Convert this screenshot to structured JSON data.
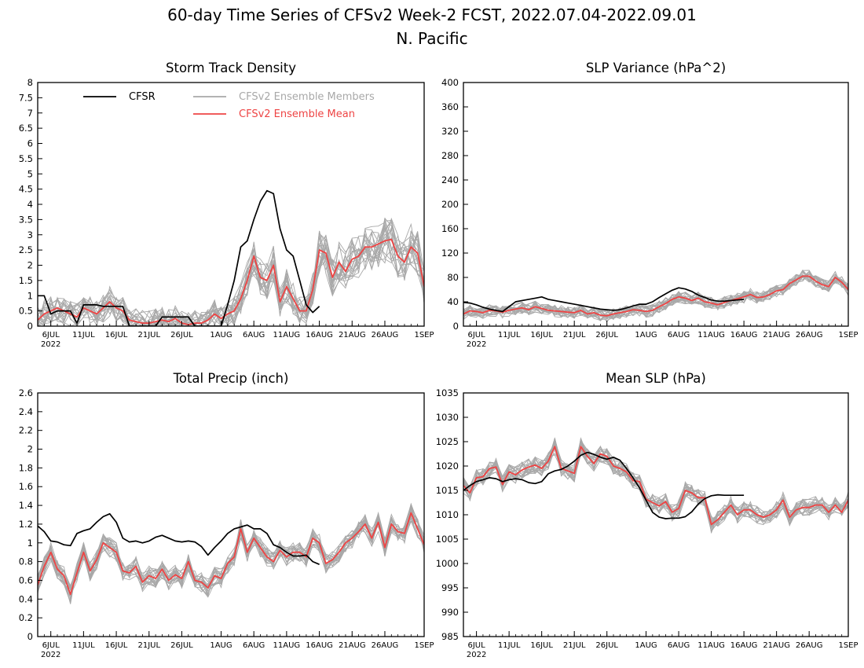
{
  "figure": {
    "title_line1": "60-day Time Series of CFSv2 Week-2 FCST, 2022.07.04-2022.09.01",
    "title_line2": "N. Pacific"
  },
  "legend": {
    "cfsr": "CFSR",
    "members": "CFSv2 Ensemble Members",
    "mean": "CFSv2 Ensemble Mean"
  },
  "colors": {
    "cfsr": "#000000",
    "members": "#a8a8a8",
    "mean": "#ee4444"
  },
  "x_axis": {
    "ticks": [
      {
        "day": 2,
        "label": "6JUL"
      },
      {
        "day": 7,
        "label": "11JUL"
      },
      {
        "day": 12,
        "label": "16JUL"
      },
      {
        "day": 17,
        "label": "21JUL"
      },
      {
        "day": 22,
        "label": "26JUL"
      },
      {
        "day": 28,
        "label": "1AUG"
      },
      {
        "day": 33,
        "label": "6AUG"
      },
      {
        "day": 38,
        "label": "11AUG"
      },
      {
        "day": 43,
        "label": "16AUG"
      },
      {
        "day": 48,
        "label": "21AUG"
      },
      {
        "day": 53,
        "label": "26AUG"
      },
      {
        "day": 59,
        "label": "1SEP"
      }
    ],
    "year_label": "2022"
  },
  "chart_data": [
    {
      "type": "line",
      "title": "Storm Track Density",
      "ylim": [
        0,
        8
      ],
      "yticks": [
        "0",
        "0.5",
        "1",
        "1.5",
        "2",
        "2.5",
        "3",
        "3.5",
        "4",
        "4.5",
        "5",
        "5.5",
        "6",
        "6.5",
        "7",
        "7.5",
        "8"
      ],
      "ystep": 0.5,
      "x_start": "2022-07-04",
      "x_end": "2022-09-01",
      "grid": false,
      "legend_position": "top-left",
      "series": [
        {
          "name": "CFSR",
          "x": [
            0,
            1,
            2,
            3,
            4,
            5,
            6,
            7,
            8,
            9,
            10,
            11,
            12,
            13,
            14,
            15,
            16,
            17,
            18,
            19,
            20,
            21,
            22,
            23,
            24,
            25,
            26,
            27,
            28,
            29,
            30,
            31,
            32,
            33,
            34,
            35,
            36,
            37,
            38,
            39,
            40,
            41,
            42,
            43
          ],
          "values": [
            1.0,
            1.0,
            0.4,
            0.5,
            0.5,
            0.5,
            0.1,
            0.7,
            0.7,
            0.7,
            0.65,
            0.65,
            0.65,
            0.65,
            0.0,
            0.0,
            0.0,
            0.0,
            0.0,
            0.3,
            0.3,
            0.3,
            0.3,
            0.3,
            0.0,
            0.0,
            0.0,
            0.0,
            0.0,
            0.7,
            1.5,
            2.6,
            2.8,
            3.5,
            4.1,
            4.45,
            4.35,
            3.2,
            2.5,
            2.3,
            1.5,
            0.7,
            0.45,
            0.65
          ]
        },
        {
          "name": "CFSv2 Ensemble Mean",
          "x": [
            0,
            1,
            2,
            3,
            4,
            5,
            6,
            7,
            8,
            9,
            10,
            11,
            12,
            13,
            14,
            15,
            16,
            17,
            18,
            19,
            20,
            21,
            22,
            23,
            24,
            25,
            26,
            27,
            28,
            29,
            30,
            31,
            32,
            33,
            34,
            35,
            36,
            37,
            38,
            39,
            40,
            41,
            42,
            43,
            44,
            45,
            46,
            47,
            48,
            49,
            50,
            51,
            52,
            53,
            54,
            55,
            56,
            57,
            58,
            59
          ],
          "values": [
            0.2,
            0.4,
            0.5,
            0.6,
            0.5,
            0.4,
            0.3,
            0.6,
            0.5,
            0.4,
            0.6,
            0.8,
            0.6,
            0.5,
            0.2,
            0.15,
            0.1,
            0.1,
            0.15,
            0.2,
            0.15,
            0.25,
            0.1,
            0.05,
            0.1,
            0.1,
            0.2,
            0.4,
            0.25,
            0.4,
            0.5,
            0.9,
            1.5,
            2.3,
            1.6,
            1.5,
            2.0,
            0.8,
            1.3,
            0.9,
            0.5,
            0.5,
            1.2,
            2.5,
            2.4,
            1.6,
            2.1,
            1.8,
            2.2,
            2.3,
            2.6,
            2.6,
            2.7,
            2.8,
            2.85,
            2.3,
            2.1,
            2.6,
            2.4,
            1.3
          ]
        }
      ]
    },
    {
      "type": "line",
      "title": "SLP Variance (hPa^2)",
      "ylim": [
        0,
        400
      ],
      "yticks": [
        "0",
        "40",
        "80",
        "120",
        "160",
        "200",
        "240",
        "280",
        "320",
        "360",
        "400"
      ],
      "ystep": 40,
      "x_start": "2022-07-04",
      "x_end": "2022-09-01",
      "grid": false,
      "series": [
        {
          "name": "CFSR",
          "x": [
            0,
            1,
            2,
            3,
            4,
            5,
            6,
            7,
            8,
            9,
            10,
            11,
            12,
            13,
            14,
            15,
            16,
            17,
            18,
            19,
            20,
            21,
            22,
            23,
            24,
            25,
            26,
            27,
            28,
            29,
            30,
            31,
            32,
            33,
            34,
            35,
            36,
            37,
            38,
            39,
            40,
            41,
            42,
            43
          ],
          "values": [
            39,
            38,
            35,
            31,
            28,
            26,
            24,
            32,
            40,
            42,
            44,
            46,
            48,
            44,
            42,
            40,
            38,
            36,
            34,
            32,
            30,
            28,
            27,
            26,
            27,
            30,
            33,
            36,
            36,
            40,
            47,
            53,
            59,
            63,
            61,
            57,
            51,
            47,
            43,
            41,
            41,
            42,
            43,
            44
          ]
        },
        {
          "name": "CFSv2 Ensemble Mean",
          "x": [
            0,
            1,
            2,
            3,
            4,
            5,
            6,
            7,
            8,
            9,
            10,
            11,
            12,
            13,
            14,
            15,
            16,
            17,
            18,
            19,
            20,
            21,
            22,
            23,
            24,
            25,
            26,
            27,
            28,
            29,
            30,
            31,
            32,
            33,
            34,
            35,
            36,
            37,
            38,
            39,
            40,
            41,
            42,
            43,
            44,
            45,
            46,
            47,
            48,
            49,
            50,
            51,
            52,
            53,
            54,
            55,
            56,
            57,
            58,
            59
          ],
          "values": [
            20,
            25,
            24,
            22,
            26,
            25,
            23,
            26,
            28,
            30,
            27,
            32,
            29,
            26,
            25,
            24,
            23,
            22,
            26,
            20,
            22,
            18,
            17,
            20,
            22,
            24,
            27,
            26,
            24,
            26,
            32,
            37,
            44,
            48,
            46,
            42,
            46,
            40,
            38,
            35,
            39,
            42,
            45,
            48,
            52,
            47,
            48,
            52,
            58,
            60,
            70,
            76,
            82,
            82,
            74,
            68,
            65,
            80,
            72,
            60
          ]
        }
      ]
    },
    {
      "type": "line",
      "title": "Total Precip (inch)",
      "ylim": [
        0,
        2.6
      ],
      "yticks": [
        "0",
        "0.2",
        "0.4",
        "0.6",
        "0.8",
        "1",
        "1.2",
        "1.4",
        "1.6",
        "1.8",
        "2",
        "2.2",
        "2.4",
        "2.6"
      ],
      "ystep": 0.2,
      "x_start": "2022-07-04",
      "x_end": "2022-09-01",
      "grid": false,
      "series": [
        {
          "name": "CFSR",
          "x": [
            0,
            1,
            2,
            3,
            4,
            5,
            6,
            7,
            8,
            9,
            10,
            11,
            12,
            13,
            14,
            15,
            16,
            17,
            18,
            19,
            20,
            21,
            22,
            23,
            24,
            25,
            26,
            27,
            28,
            29,
            30,
            31,
            32,
            33,
            34,
            35,
            36,
            37,
            38,
            39,
            40,
            41,
            42,
            43
          ],
          "values": [
            1.18,
            1.12,
            1.02,
            1.01,
            0.98,
            0.97,
            1.1,
            1.13,
            1.15,
            1.22,
            1.28,
            1.31,
            1.22,
            1.05,
            1.01,
            1.02,
            1.0,
            1.02,
            1.06,
            1.08,
            1.05,
            1.02,
            1.01,
            1.02,
            1.01,
            0.96,
            0.87,
            0.95,
            1.02,
            1.1,
            1.15,
            1.17,
            1.19,
            1.15,
            1.15,
            1.1,
            0.98,
            0.95,
            0.9,
            0.86,
            0.86,
            0.87,
            0.8,
            0.77
          ]
        },
        {
          "name": "CFSv2 Ensemble Mean",
          "x": [
            0,
            1,
            2,
            3,
            4,
            5,
            6,
            7,
            8,
            9,
            10,
            11,
            12,
            13,
            14,
            15,
            16,
            17,
            18,
            19,
            20,
            21,
            22,
            23,
            24,
            25,
            26,
            27,
            28,
            29,
            30,
            31,
            32,
            33,
            34,
            35,
            36,
            37,
            38,
            39,
            40,
            41,
            42,
            43,
            44,
            45,
            46,
            47,
            48,
            49,
            50,
            51,
            52,
            53,
            54,
            55,
            56,
            57,
            58,
            59
          ],
          "values": [
            0.55,
            0.75,
            0.9,
            0.72,
            0.65,
            0.45,
            0.68,
            0.9,
            0.7,
            0.82,
            1.0,
            0.95,
            0.9,
            0.7,
            0.68,
            0.75,
            0.58,
            0.65,
            0.62,
            0.72,
            0.6,
            0.66,
            0.62,
            0.8,
            0.6,
            0.58,
            0.52,
            0.65,
            0.62,
            0.78,
            0.85,
            1.15,
            0.9,
            1.05,
            0.95,
            0.85,
            0.8,
            0.92,
            0.85,
            0.9,
            0.9,
            0.85,
            1.05,
            1.0,
            0.78,
            0.82,
            0.9,
            1.0,
            1.05,
            1.12,
            1.2,
            1.05,
            1.22,
            0.95,
            1.2,
            1.12,
            1.1,
            1.32,
            1.15,
            0.98
          ]
        }
      ]
    },
    {
      "type": "line",
      "title": "Mean SLP (hPa)",
      "ylim": [
        985,
        1035
      ],
      "yticks": [
        "985",
        "990",
        "995",
        "1000",
        "1005",
        "1010",
        "1015",
        "1020",
        "1025",
        "1030",
        "1035"
      ],
      "ystep": 5,
      "x_start": "2022-07-04",
      "x_end": "2022-09-01",
      "grid": false,
      "series": [
        {
          "name": "CFSR",
          "x": [
            0,
            1,
            2,
            3,
            4,
            5,
            6,
            7,
            8,
            9,
            10,
            11,
            12,
            13,
            14,
            15,
            16,
            17,
            18,
            19,
            20,
            21,
            22,
            23,
            24,
            25,
            26,
            27,
            28,
            29,
            30,
            31,
            32,
            33,
            34,
            35,
            36,
            37,
            38,
            39,
            40,
            41,
            42,
            43
          ],
          "values": [
            1015,
            1016,
            1016.8,
            1017.2,
            1017.6,
            1017.4,
            1016.8,
            1017.2,
            1017.4,
            1017.2,
            1016.6,
            1016.4,
            1016.8,
            1018.4,
            1019,
            1019.3,
            1020,
            1021,
            1022.2,
            1022.8,
            1022.4,
            1021.8,
            1021.4,
            1021.8,
            1021.2,
            1019.5,
            1017.6,
            1015.5,
            1013,
            1010.5,
            1009.5,
            1009.2,
            1009.3,
            1009.3,
            1009.6,
            1010.6,
            1012.2,
            1013.3,
            1013.9,
            1014.1,
            1014,
            1014,
            1014,
            1014
          ]
        },
        {
          "name": "CFSv2 Ensemble Mean",
          "x": [
            0,
            1,
            2,
            3,
            4,
            5,
            6,
            7,
            8,
            9,
            10,
            11,
            12,
            13,
            14,
            15,
            16,
            17,
            18,
            19,
            20,
            21,
            22,
            23,
            24,
            25,
            26,
            27,
            28,
            29,
            30,
            31,
            32,
            33,
            34,
            35,
            36,
            37,
            38,
            39,
            40,
            41,
            42,
            43,
            44,
            45,
            46,
            47,
            48,
            49,
            50,
            51,
            52,
            53,
            54,
            55,
            56,
            57,
            58,
            59
          ],
          "values": [
            1016,
            1014.5,
            1017.6,
            1017.8,
            1019.5,
            1019.8,
            1016.2,
            1018.8,
            1018.2,
            1019.2,
            1019.8,
            1020.2,
            1019.5,
            1021,
            1024,
            1019.5,
            1019,
            1018.5,
            1024,
            1022,
            1020.5,
            1022.5,
            1022,
            1020,
            1019.5,
            1018.8,
            1017,
            1016.8,
            1013.2,
            1012.5,
            1011.8,
            1012.7,
            1010.5,
            1011.3,
            1015,
            1014.5,
            1013.5,
            1013.5,
            1008,
            1009,
            1010.5,
            1012,
            1010,
            1011,
            1011,
            1010,
            1009.5,
            1010,
            1011,
            1013,
            1009.5,
            1011,
            1011.5,
            1011.5,
            1012,
            1012,
            1010.5,
            1012,
            1010.5,
            1013
          ]
        }
      ]
    }
  ]
}
